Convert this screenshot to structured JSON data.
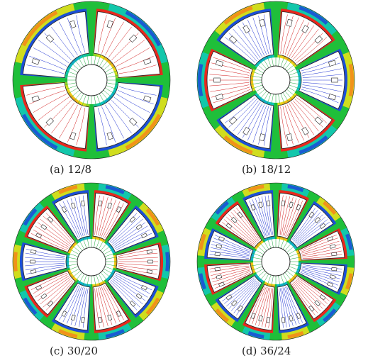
{
  "figure": {
    "panels": [
      {
        "caption": "(a) 12/8",
        "segments": 4,
        "slots_per_segment": 3
      },
      {
        "caption": "(b) 18/12",
        "segments": 6,
        "slots_per_segment": 3
      },
      {
        "caption": "(c) 30/20",
        "segments": 10,
        "slots_per_segment": 3
      },
      {
        "caption": "(d) 36/24",
        "segments": 12,
        "slots_per_segment": 3
      }
    ],
    "colors": {
      "high": "#e8281e",
      "mid": "#1fbf3a",
      "low": "#1c4fd6",
      "teal": "#10c8c0",
      "yellow": "#f0e21a",
      "orange": "#f48a1a",
      "outline": "#222222",
      "line_red": "#d21a1a",
      "line_blue": "#1a2fd2",
      "line_green": "#19a838"
    }
  }
}
